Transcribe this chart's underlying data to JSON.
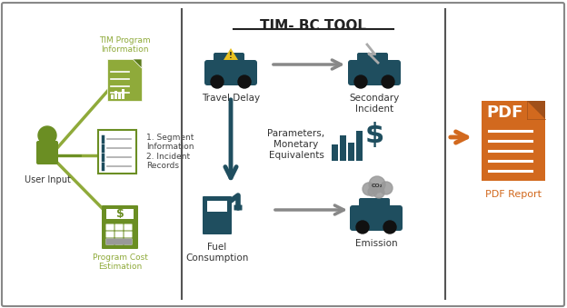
{
  "title": "TIM- BC TOOL",
  "bg_color": "#ffffff",
  "border_color": "#888888",
  "divider_color": "#444444",
  "green_color": "#6b8e23",
  "dark_teal": "#1f4e5f",
  "orange_color": "#d2691e",
  "gray_arrow": "#888888",
  "light_green": "#8faa3a",
  "left_panel": {
    "user_input_label": "User Input",
    "tim_program_label": "TIM Program\nInformation",
    "segment_label": "1. Segment\nInformation\n2. Incident\nRecords",
    "cost_label": "Program Cost\nEstimation"
  },
  "middle_panel": {
    "title": "TIM- BC TOOL",
    "row1_left": "Travel Delay",
    "row1_right": "Secondary\nIncident",
    "row2_center": "Parameters,\nMonetary\nEquivalents",
    "row3_left": "Fuel\nConsumption",
    "row3_right": "Emission"
  },
  "right_panel": {
    "label": "PDF Report"
  }
}
